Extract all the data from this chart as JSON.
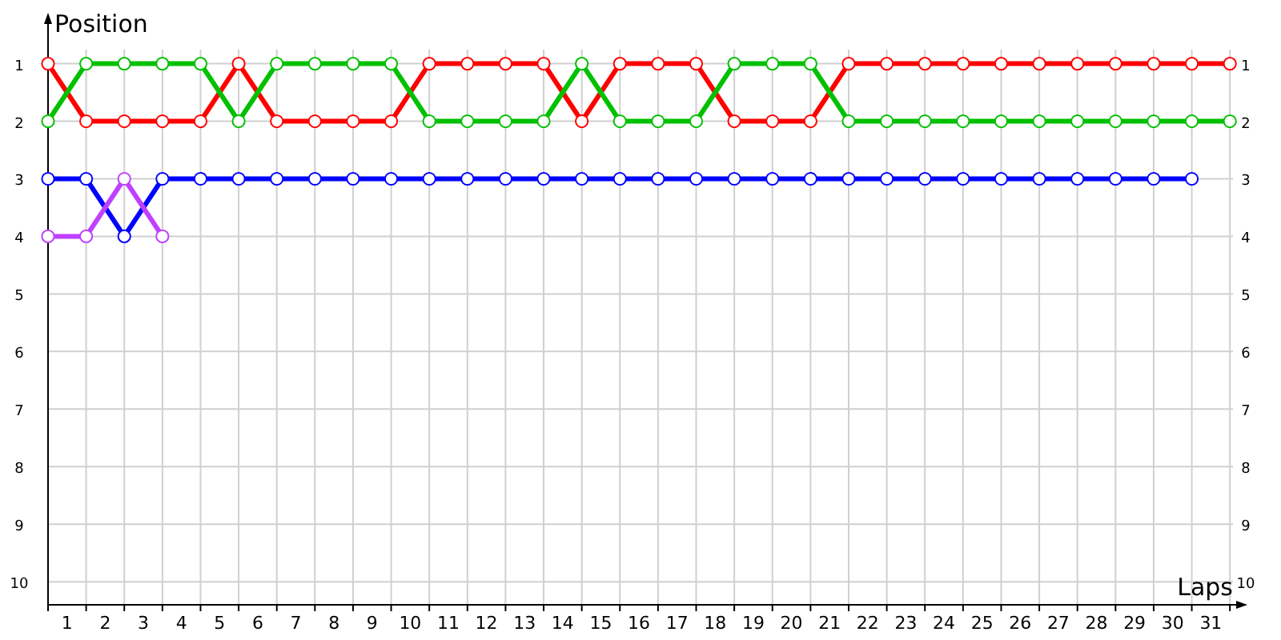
{
  "chart_data": {
    "type": "line",
    "xlabel": "Laps",
    "ylabel": "Position",
    "x": [
      0,
      1,
      2,
      3,
      4,
      5,
      6,
      7,
      8,
      9,
      10,
      11,
      12,
      13,
      14,
      15,
      16,
      17,
      18,
      19,
      20,
      21,
      22,
      23,
      24,
      25,
      26,
      27,
      28,
      29,
      30,
      31
    ],
    "series": [
      {
        "color": "#ff0000",
        "values": [
          1,
          2,
          2,
          2,
          2,
          1,
          2,
          2,
          2,
          2,
          1,
          1,
          1,
          1,
          2,
          1,
          1,
          1,
          2,
          2,
          2,
          1,
          1,
          1,
          1,
          1,
          1,
          1,
          1,
          1,
          1,
          1
        ]
      },
      {
        "color": "#00c000",
        "values": [
          2,
          1,
          1,
          1,
          1,
          2,
          1,
          1,
          1,
          1,
          2,
          2,
          2,
          2,
          1,
          2,
          2,
          2,
          1,
          1,
          1,
          2,
          2,
          2,
          2,
          2,
          2,
          2,
          2,
          2,
          2,
          2
        ]
      },
      {
        "color": "#0000ff",
        "x": [
          0,
          1,
          2,
          3,
          4,
          5,
          6,
          7,
          8,
          9,
          10,
          11,
          12,
          13,
          14,
          15,
          16,
          17,
          18,
          19,
          20,
          21,
          22,
          23,
          24,
          25,
          26,
          27,
          28,
          29,
          30
        ],
        "values": [
          3,
          3,
          4,
          3,
          3,
          3,
          3,
          3,
          3,
          3,
          3,
          3,
          3,
          3,
          3,
          3,
          3,
          3,
          3,
          3,
          3,
          3,
          3,
          3,
          3,
          3,
          3,
          3,
          3,
          3,
          3
        ]
      },
      {
        "color": "#c040ff",
        "x": [
          0,
          1,
          2,
          3
        ],
        "values": [
          4,
          4,
          3,
          4
        ]
      }
    ],
    "xlim": [
      0,
      31.5
    ],
    "xticks": [
      {
        "value": 0,
        "label": null
      },
      {
        "value": 0.5,
        "label": "1"
      },
      {
        "value": 1,
        "label": null
      },
      {
        "value": 1.5,
        "label": "2"
      },
      {
        "value": 2,
        "label": null
      },
      {
        "value": 2.5,
        "label": "3"
      },
      {
        "value": 3,
        "label": null
      },
      {
        "value": 3.5,
        "label": "4"
      },
      {
        "value": 4,
        "label": null
      },
      {
        "value": 4.5,
        "label": "5"
      },
      {
        "value": 5,
        "label": null
      },
      {
        "value": 5.5,
        "label": "6"
      },
      {
        "value": 6,
        "label": null
      },
      {
        "value": 6.5,
        "label": "7"
      },
      {
        "value": 7,
        "label": null
      },
      {
        "value": 7.5,
        "label": "8"
      },
      {
        "value": 8,
        "label": null
      },
      {
        "value": 8.5,
        "label": "9"
      },
      {
        "value": 9,
        "label": null
      },
      {
        "value": 9.5,
        "label": "10"
      },
      {
        "value": 10,
        "label": null
      },
      {
        "value": 10.5,
        "label": "11"
      },
      {
        "value": 11,
        "label": null
      },
      {
        "value": 11.5,
        "label": "12"
      },
      {
        "value": 12,
        "label": null
      },
      {
        "value": 12.5,
        "label": "13"
      },
      {
        "value": 13,
        "label": null
      },
      {
        "value": 13.5,
        "label": "14"
      },
      {
        "value": 14,
        "label": null
      },
      {
        "value": 14.5,
        "label": "15"
      },
      {
        "value": 15,
        "label": null
      },
      {
        "value": 15.5,
        "label": "16"
      },
      {
        "value": 16,
        "label": null
      },
      {
        "value": 16.5,
        "label": "17"
      },
      {
        "value": 17,
        "label": null
      },
      {
        "value": 17.5,
        "label": "18"
      },
      {
        "value": 18,
        "label": null
      },
      {
        "value": 18.5,
        "label": "19"
      },
      {
        "value": 19,
        "label": null
      },
      {
        "value": 19.5,
        "label": "20"
      },
      {
        "value": 20,
        "label": null
      },
      {
        "value": 20.5,
        "label": "21"
      },
      {
        "value": 21,
        "label": null
      },
      {
        "value": 21.5,
        "label": "22"
      },
      {
        "value": 22,
        "label": null
      },
      {
        "value": 22.5,
        "label": "23"
      },
      {
        "value": 23,
        "label": null
      },
      {
        "value": 23.5,
        "label": "24"
      },
      {
        "value": 24,
        "label": null
      },
      {
        "value": 24.5,
        "label": "25"
      },
      {
        "value": 25,
        "label": null
      },
      {
        "value": 25.5,
        "label": "26"
      },
      {
        "value": 26,
        "label": null
      },
      {
        "value": 26.5,
        "label": "27"
      },
      {
        "value": 27,
        "label": null
      },
      {
        "value": 27.5,
        "label": "28"
      },
      {
        "value": 28,
        "label": null
      },
      {
        "value": 28.5,
        "label": "29"
      },
      {
        "value": 29,
        "label": null
      },
      {
        "value": 29.5,
        "label": "30"
      },
      {
        "value": 30,
        "label": null
      },
      {
        "value": 30.5,
        "label": "31"
      },
      {
        "value": 31,
        "label": null
      }
    ],
    "ylim": [
      10.4,
      0.2
    ],
    "yticks": [
      1,
      2,
      3,
      4,
      5,
      6,
      7,
      8,
      9,
      10
    ],
    "y2lim": [
      10.4,
      0.2
    ],
    "y2ticks": [
      1,
      2,
      3,
      4,
      5,
      6,
      7,
      8,
      9,
      10
    ],
    "grid": true,
    "marker": "circle",
    "line_style": "solid"
  }
}
